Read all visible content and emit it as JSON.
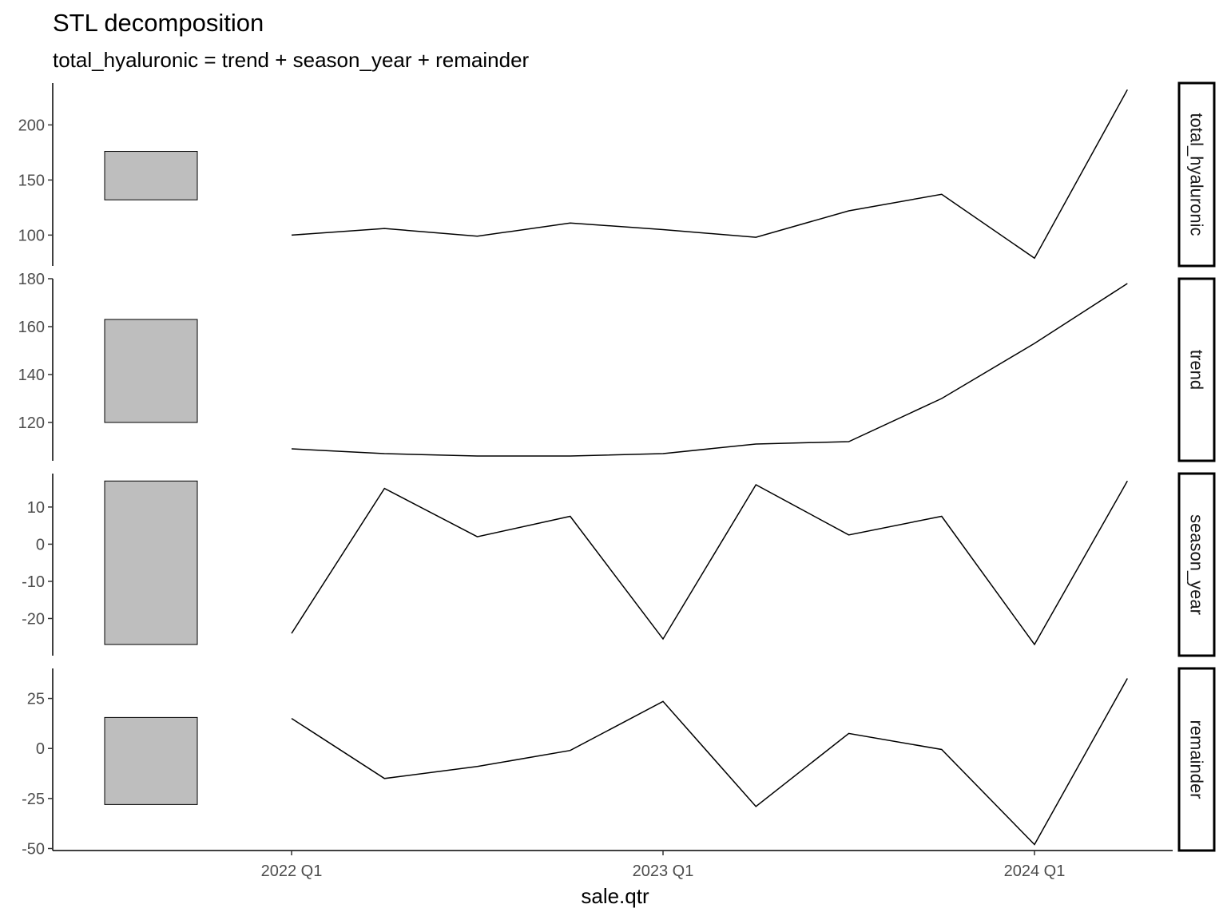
{
  "title": "STL decomposition",
  "subtitle": "total_hyaluronic = trend + season_year + remainder",
  "chart_data": {
    "type": "line",
    "title": "STL decomposition",
    "subtitle": "total_hyaluronic = trend + season_year + remainder",
    "xlabel": "sale.qtr",
    "ylabel": "",
    "x": [
      "2022 Q1",
      "2022 Q2",
      "2022 Q3",
      "2022 Q4",
      "2023 Q1",
      "2023 Q2",
      "2023 Q3",
      "2023 Q4",
      "2024 Q1",
      "2024 Q2"
    ],
    "x_ticks": [
      "2022 Q1",
      "2023 Q1",
      "2024 Q1"
    ],
    "grid": false,
    "legend": "none",
    "panels": [
      {
        "name": "total_hyaluronic",
        "values": [
          100,
          106,
          99,
          111,
          105,
          98,
          122,
          137,
          79,
          232
        ],
        "ylim": [
          72,
          238
        ],
        "yticks": [
          100,
          150,
          200
        ],
        "scale_bar": [
          132,
          176
        ]
      },
      {
        "name": "trend",
        "values": [
          109,
          107,
          106,
          106,
          107,
          111,
          112,
          130,
          153,
          178
        ],
        "ylim": [
          104,
          180
        ],
        "yticks": [
          120,
          140,
          160,
          180
        ],
        "scale_bar": [
          120,
          163
        ]
      },
      {
        "name": "season_year",
        "values": [
          -24,
          15,
          2,
          7.5,
          -25.5,
          16,
          2.5,
          7.5,
          -27,
          17
        ],
        "ylim": [
          -30,
          19
        ],
        "yticks": [
          -20,
          -10,
          0,
          10
        ],
        "scale_bar": [
          -27,
          17
        ]
      },
      {
        "name": "remainder",
        "values": [
          15,
          -15,
          -9,
          -1,
          23.5,
          -29,
          7.5,
          -0.5,
          -48,
          35
        ],
        "ylim": [
          -51,
          40
        ],
        "yticks": [
          -50,
          -25,
          0,
          25
        ],
        "scale_bar": [
          -28,
          15.5
        ]
      }
    ]
  }
}
